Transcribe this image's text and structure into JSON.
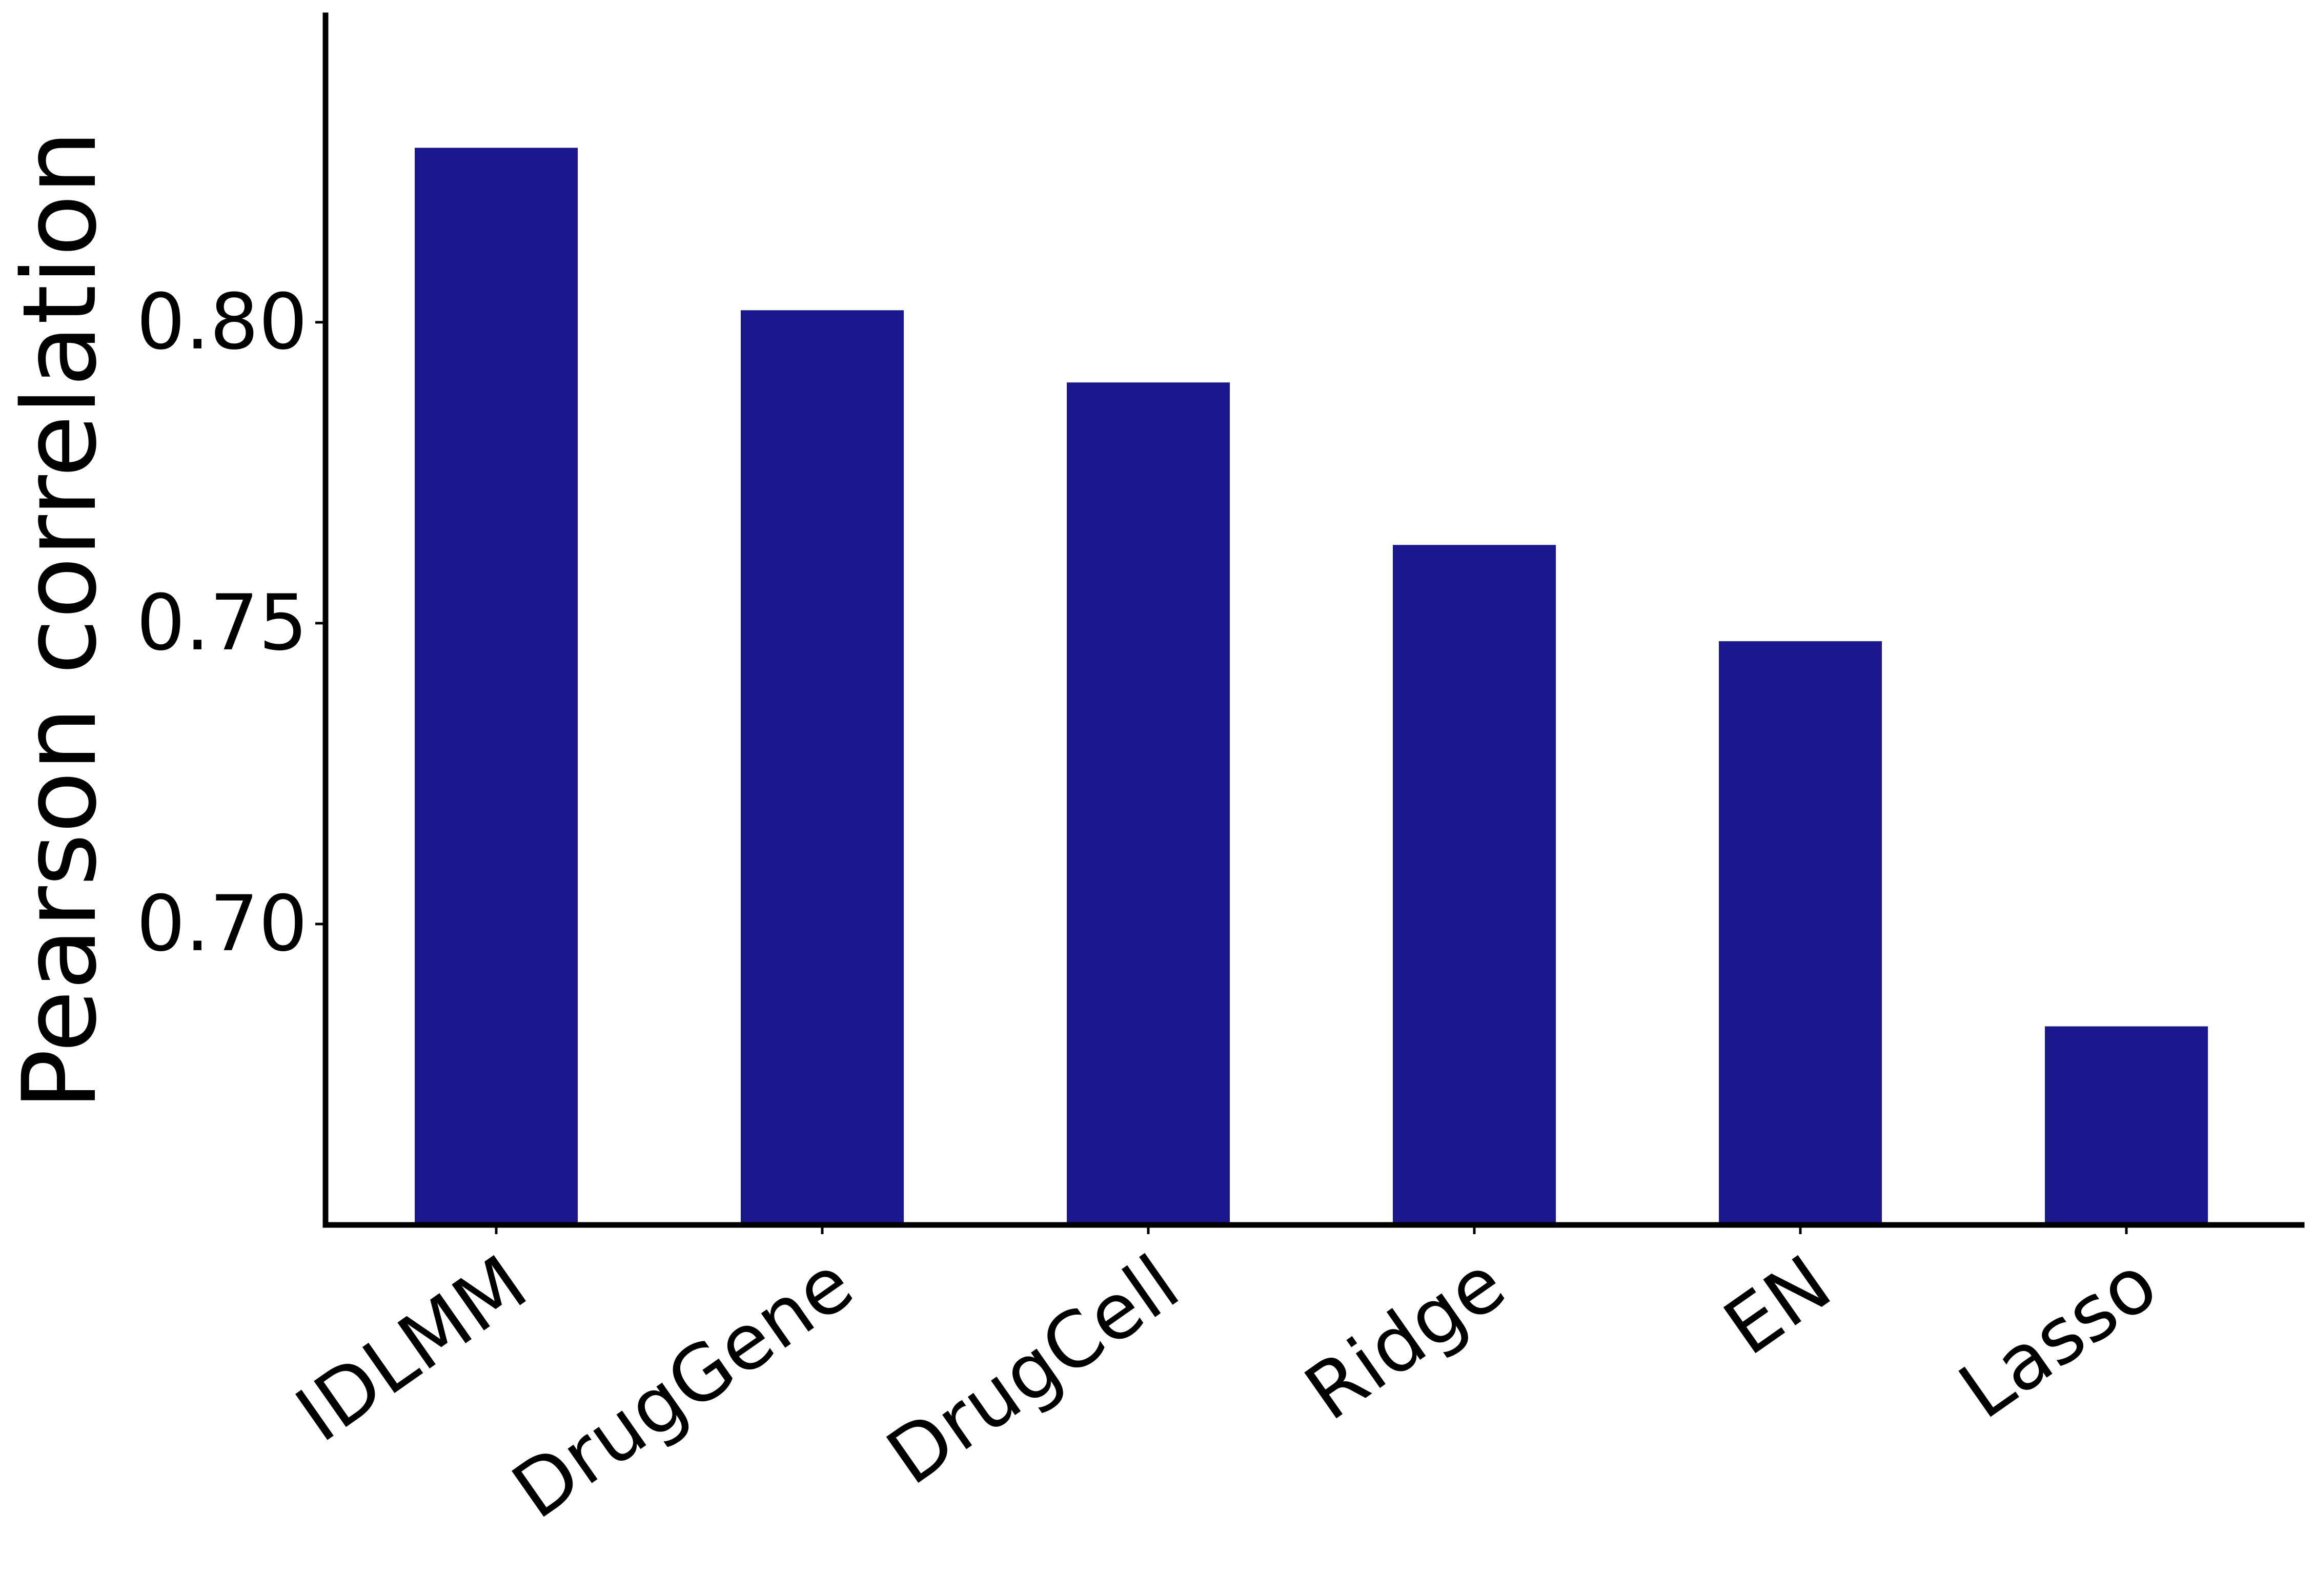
{
  "chart_data": {
    "type": "bar",
    "title": "",
    "xlabel": "",
    "ylabel": "Pearson correlation",
    "categories": [
      "IDLMM",
      "DrugGene",
      "DrugCell",
      "Ridge",
      "EN",
      "Lasso"
    ],
    "values": [
      0.829,
      0.802,
      0.79,
      0.763,
      0.747,
      0.683
    ],
    "ylim": [
      0.65,
      0.851
    ],
    "yticks": [
      "0.70",
      "0.75",
      "0.80"
    ],
    "bar_color": "#1b178c",
    "grid": false,
    "legend": "none"
  }
}
